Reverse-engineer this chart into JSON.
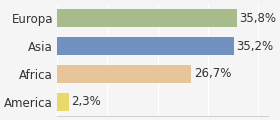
{
  "categories": [
    "America",
    "Africa",
    "Asia",
    "Europa"
  ],
  "values": [
    2.3,
    26.7,
    35.2,
    35.8
  ],
  "labels": [
    "2,3%",
    "26,7%",
    "35,2%",
    "35,8%"
  ],
  "bar_colors": [
    "#e8d96a",
    "#e8c49a",
    "#7191c0",
    "#a8bb8a"
  ],
  "background_color": "#f5f5f5",
  "xlim": [
    0,
    42
  ],
  "bar_height": 0.65,
  "label_fontsize": 8.5,
  "cat_fontsize": 8.5
}
